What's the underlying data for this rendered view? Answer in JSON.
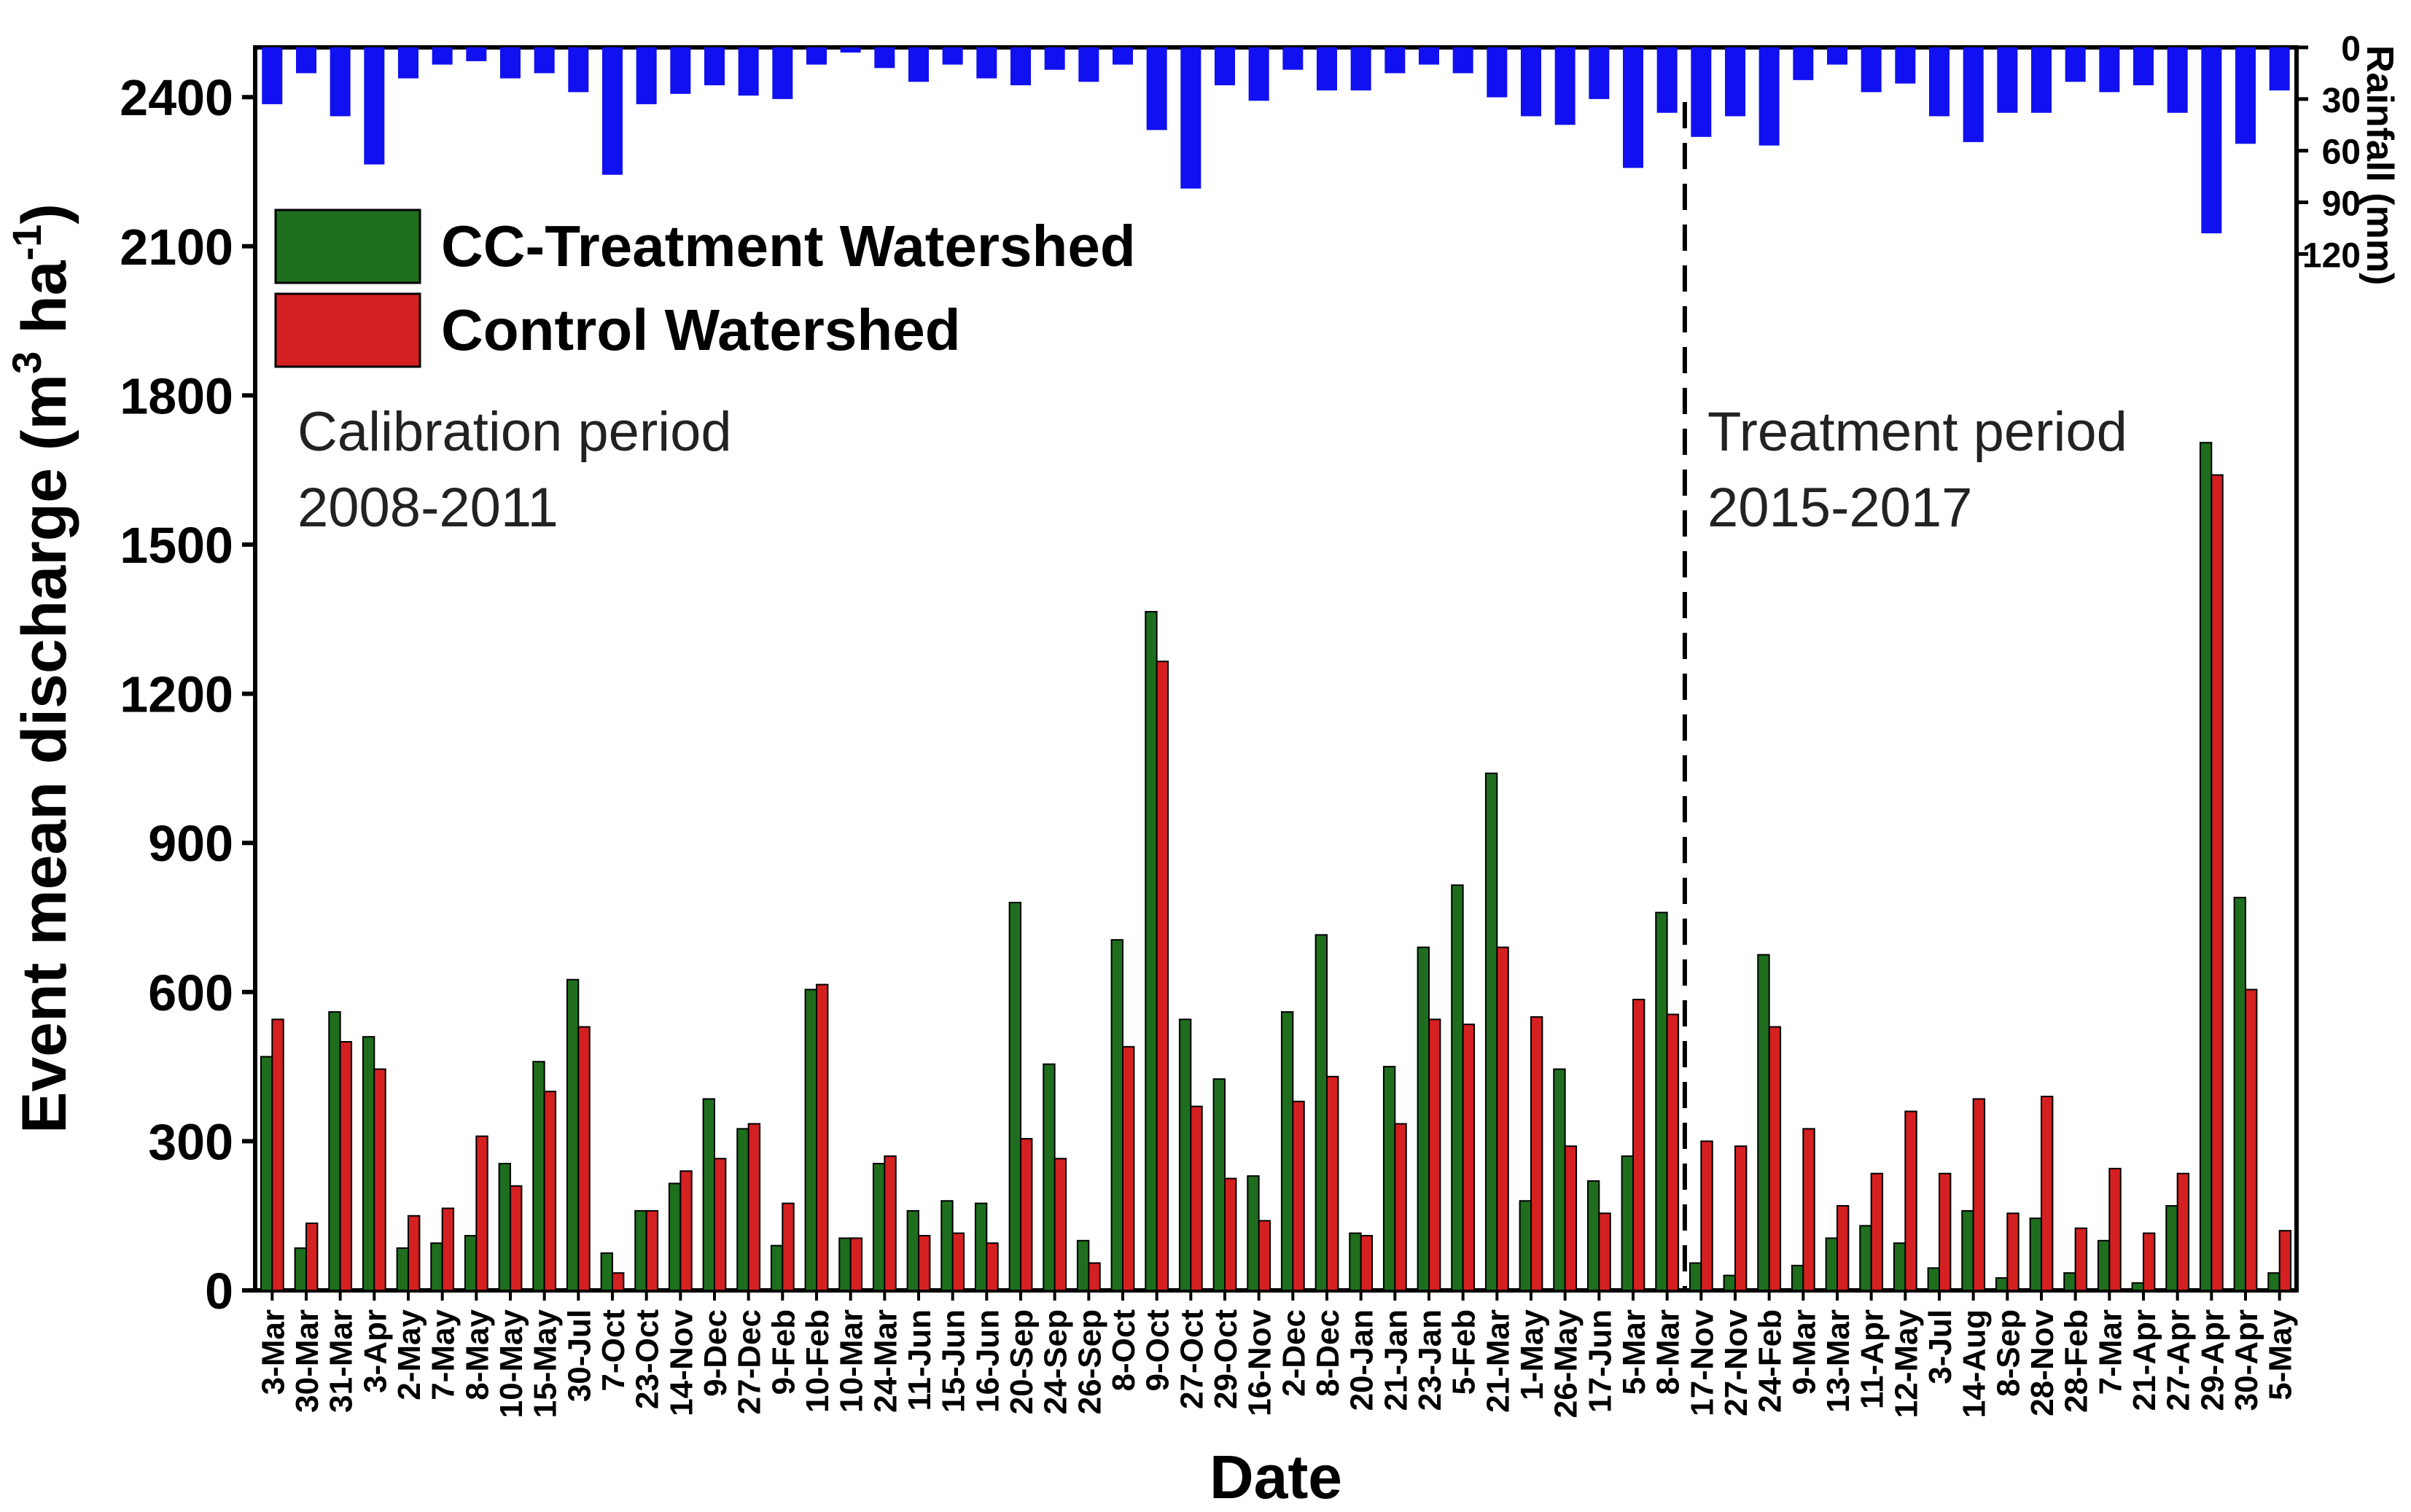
{
  "chart_data": {
    "type": "bar",
    "title": "",
    "xlabel": "Date",
    "ylabel": "Event mean discharge (m3 ha-1)",
    "ylabel_parts": {
      "pre": "Event mean discharge (m",
      "sup1": "3",
      "mid": " ha",
      "sup2": "-1",
      "post": ")"
    },
    "ylim": [
      0,
      2500
    ],
    "yticks": [
      "0",
      "300",
      "600",
      "900",
      "1200",
      "1500",
      "1800",
      "2100",
      "2400"
    ],
    "rain_label": "Rainfall (mm)",
    "rain_lim": [
      0,
      130
    ],
    "rain_ticks": [
      "0",
      "30",
      "60",
      "90",
      "120"
    ],
    "categories": [
      "3-Mar",
      "30-Mar",
      "31-Mar",
      "3-Apr",
      "2-May",
      "7-May",
      "8-May",
      "10-May",
      "15-May",
      "30-Jul",
      "7-Oct",
      "23-Oct",
      "14-Nov",
      "9-Dec",
      "27-Dec",
      "9-Feb",
      "10-Feb",
      "10-Mar",
      "24-Mar",
      "11-Jun",
      "15-Jun",
      "16-Jun",
      "20-Sep",
      "24-Sep",
      "26-Sep",
      "8-Oct",
      "9-Oct",
      "27-Oct",
      "29-Oct",
      "16-Nov",
      "2-Dec",
      "8-Dec",
      "20-Jan",
      "21-Jan",
      "23-Jan",
      "5-Feb",
      "21-Mar",
      "1-May",
      "26-May",
      "17-Jun",
      "5-Mar",
      "8-Mar",
      "17-Nov",
      "27-Nov",
      "24-Feb",
      "9-Mar",
      "13-Mar",
      "11-Apr",
      "12-May",
      "3-Jul",
      "14-Aug",
      "8-Sep",
      "28-Nov",
      "28-Feb",
      "7-Mar",
      "21-Apr",
      "27-Apr",
      "29-Apr",
      "30-Apr",
      "5-May"
    ],
    "series": [
      {
        "name": "CC-Treatment Watershed",
        "color": "#1e6e1e",
        "values": [
          470,
          85,
          560,
          510,
          85,
          95,
          110,
          255,
          460,
          625,
          75,
          160,
          215,
          385,
          325,
          90,
          605,
          105,
          255,
          160,
          180,
          175,
          780,
          455,
          100,
          705,
          1365,
          545,
          425,
          230,
          560,
          715,
          115,
          450,
          690,
          815,
          1040,
          180,
          445,
          220,
          270,
          760,
          55,
          30,
          675,
          50,
          105,
          130,
          95,
          45,
          160,
          25,
          145,
          35,
          100,
          15,
          170,
          1705,
          790,
          35
        ]
      },
      {
        "name": "Control Watershed",
        "color": "#d42020",
        "values": [
          545,
          135,
          500,
          445,
          150,
          165,
          310,
          210,
          400,
          530,
          35,
          160,
          240,
          265,
          335,
          175,
          615,
          105,
          270,
          110,
          115,
          95,
          305,
          265,
          55,
          490,
          1265,
          370,
          225,
          140,
          380,
          430,
          110,
          335,
          545,
          535,
          690,
          550,
          290,
          155,
          585,
          555,
          300,
          290,
          530,
          325,
          170,
          235,
          360,
          235,
          385,
          155,
          390,
          125,
          245,
          115,
          235,
          1640,
          605,
          120
        ]
      }
    ],
    "rainfall_mm": [
      33,
      15,
      40,
      68,
      18,
      10,
      8,
      18,
      15,
      26,
      74,
      33,
      27,
      22,
      28,
      30,
      10,
      3,
      12,
      20,
      10,
      18,
      22,
      13,
      20,
      10,
      48,
      82,
      22,
      31,
      13,
      25,
      25,
      15,
      10,
      15,
      29,
      40,
      45,
      30,
      70,
      38,
      52,
      40,
      57,
      19,
      10,
      26,
      21,
      40,
      55,
      38,
      38,
      20,
      26,
      22,
      38,
      108,
      56,
      25
    ],
    "calibration_label_1": "Calibration period",
    "calibration_label_2": "2008-2011",
    "treatment_label_1": "Treatment period",
    "treatment_label_2": "2015-2017",
    "divider_after_category": "8-Mar",
    "legend_position": "top-left",
    "grid": false,
    "rain_color": "#1010f0"
  }
}
